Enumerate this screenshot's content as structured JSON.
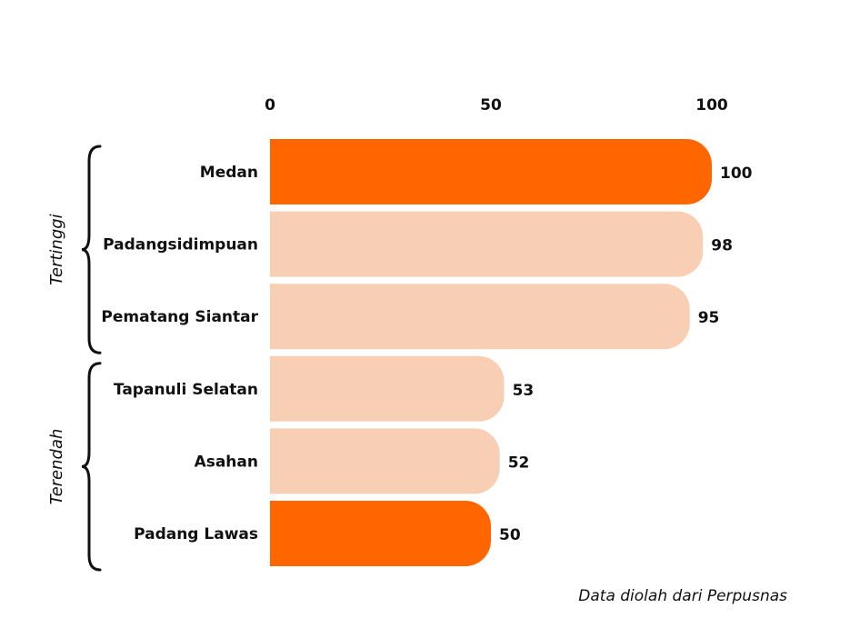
{
  "chart_data": {
    "type": "bar",
    "orientation": "horizontal",
    "categories": [
      "Medan",
      "Padangsidimpuan",
      "Pematang Siantar",
      "Tapanuli Selatan",
      "Asahan",
      "Padang Lawas"
    ],
    "values": [
      100,
      98,
      95,
      53,
      52,
      50
    ],
    "xlim": [
      0,
      100
    ],
    "xticks": [
      "0",
      "50",
      "100"
    ],
    "axis_position": "top",
    "grid": false,
    "data_labels": [
      "100",
      "98",
      "95",
      "53",
      "52",
      "50"
    ],
    "groups": [
      {
        "label": "Tertinggi",
        "categories": [
          "Medan",
          "Padangsidimpuan",
          "Pematang Siantar"
        ]
      },
      {
        "label": "Terendah",
        "categories": [
          "Tapanuli Selatan",
          "Asahan",
          "Padang Lawas"
        ]
      }
    ],
    "highlighted": [
      "Medan",
      "Padang Lawas"
    ],
    "colors": {
      "highlight": "#ff6600",
      "normal": "#f8cfb4"
    }
  },
  "source_note": "Data diolah dari Perpusnas"
}
